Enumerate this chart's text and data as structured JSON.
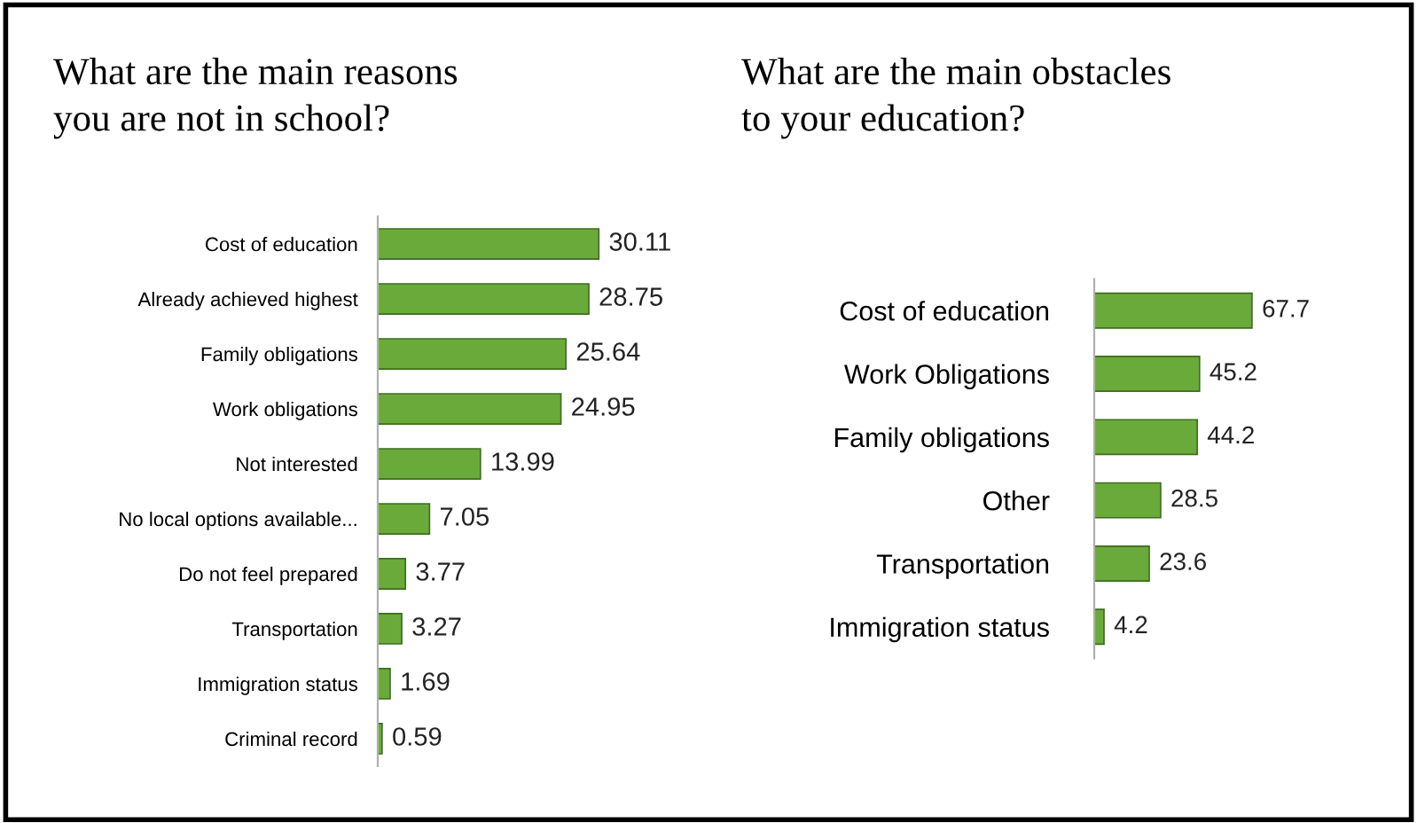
{
  "chart_data": [
    {
      "type": "bar",
      "orientation": "horizontal",
      "title": "What are the main reasons\nyou are not in school?",
      "categories": [
        "Cost of education",
        "Already achieved highest",
        "Family obligations",
        "Work obligations",
        "Not interested",
        "No local options available...",
        "Do not feel prepared",
        "Transportation",
        "Immigration status",
        "Criminal record"
      ],
      "values": [
        30.11,
        28.75,
        25.64,
        24.95,
        13.99,
        7.05,
        3.77,
        3.27,
        1.69,
        0.59
      ],
      "color": "#6aaa3a",
      "data_labels": true,
      "grid": false,
      "legend": false
    },
    {
      "type": "bar",
      "orientation": "horizontal",
      "title": "What are the main obstacles\nto your education?",
      "categories": [
        "Cost of education",
        "Work Obligations",
        "Family obligations",
        "Other",
        "Transportation",
        "Immigration status"
      ],
      "values": [
        67.7,
        45.2,
        44.2,
        28.5,
        23.6,
        4.2
      ],
      "color": "#6aaa3a",
      "data_labels": true,
      "grid": false,
      "legend": false
    }
  ]
}
